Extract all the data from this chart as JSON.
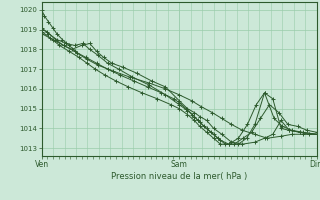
{
  "background_color": "#cce8d8",
  "grid_color": "#99ccaa",
  "line_color": "#2d5a2d",
  "marker_color": "#2d5a2d",
  "title": "Pression niveau de la mer( hPa )",
  "xlabel_ticks": [
    "Ven",
    "Sam",
    "Dim"
  ],
  "xlabel_tick_pos": [
    0.0,
    0.5,
    1.0
  ],
  "ylim": [
    1012.6,
    1020.4
  ],
  "yticks": [
    1013,
    1014,
    1015,
    1016,
    1017,
    1018,
    1019,
    1020
  ],
  "series": [
    {
      "x": [
        0.0,
        0.01,
        0.025,
        0.04,
        0.055,
        0.075,
        0.1,
        0.13,
        0.165,
        0.205,
        0.26,
        0.32,
        0.39,
        0.45,
        0.5,
        0.545,
        0.58,
        0.62,
        0.655,
        0.69,
        0.73,
        0.775,
        0.82,
        0.87,
        0.91,
        0.95,
        1.0
      ],
      "y": [
        1020.0,
        1019.7,
        1019.4,
        1019.1,
        1018.8,
        1018.5,
        1018.2,
        1017.8,
        1017.5,
        1017.2,
        1016.9,
        1016.6,
        1016.3,
        1016.0,
        1015.7,
        1015.4,
        1015.1,
        1014.8,
        1014.5,
        1014.2,
        1013.9,
        1013.7,
        1013.5,
        1013.6,
        1013.7,
        1013.7,
        1013.7
      ]
    },
    {
      "x": [
        0.0,
        0.02,
        0.05,
        0.08,
        0.11,
        0.145,
        0.175,
        0.2,
        0.225,
        0.255,
        0.295,
        0.345,
        0.4,
        0.45,
        0.5,
        0.53,
        0.555,
        0.575,
        0.6,
        0.625,
        0.655,
        0.69,
        0.73,
        0.775,
        0.81,
        0.84,
        0.87,
        0.9,
        0.94,
        0.97,
        1.0
      ],
      "y": [
        1019.0,
        1018.9,
        1018.5,
        1018.2,
        1018.0,
        1018.2,
        1018.3,
        1017.9,
        1017.6,
        1017.3,
        1017.1,
        1016.8,
        1016.4,
        1016.1,
        1015.4,
        1015.0,
        1014.8,
        1014.6,
        1014.4,
        1014.0,
        1013.7,
        1013.3,
        1013.2,
        1013.3,
        1013.5,
        1013.7,
        1014.4,
        1013.9,
        1013.8,
        1013.7,
        1013.7
      ]
    },
    {
      "x": [
        0.0,
        0.025,
        0.055,
        0.09,
        0.12,
        0.15,
        0.175,
        0.205,
        0.24,
        0.28,
        0.33,
        0.39,
        0.45,
        0.5,
        0.53,
        0.555,
        0.575,
        0.6,
        0.625,
        0.65,
        0.68,
        0.715,
        0.745,
        0.775,
        0.81,
        0.84,
        0.87,
        0.9,
        0.94,
        1.0
      ],
      "y": [
        1019.1,
        1018.8,
        1018.5,
        1018.3,
        1018.2,
        1018.3,
        1018.0,
        1017.7,
        1017.3,
        1017.0,
        1016.6,
        1016.2,
        1015.7,
        1015.2,
        1014.9,
        1014.6,
        1014.3,
        1014.0,
        1013.7,
        1013.4,
        1013.2,
        1013.2,
        1013.5,
        1014.2,
        1015.8,
        1015.5,
        1014.0,
        1013.9,
        1013.8,
        1013.7
      ]
    },
    {
      "x": [
        0.0,
        0.03,
        0.065,
        0.1,
        0.135,
        0.165,
        0.195,
        0.23,
        0.27,
        0.315,
        0.365,
        0.42,
        0.47,
        0.5,
        0.53,
        0.555,
        0.575,
        0.6,
        0.625,
        0.65,
        0.68,
        0.715,
        0.748,
        0.78,
        0.81,
        0.845,
        0.875,
        0.91,
        0.95,
        1.0
      ],
      "y": [
        1018.9,
        1018.6,
        1018.2,
        1017.9,
        1017.6,
        1017.3,
        1017.0,
        1016.7,
        1016.4,
        1016.1,
        1015.8,
        1015.5,
        1015.2,
        1015.0,
        1014.7,
        1014.4,
        1014.1,
        1013.8,
        1013.5,
        1013.2,
        1013.2,
        1013.5,
        1014.2,
        1015.2,
        1015.8,
        1014.5,
        1014.1,
        1013.9,
        1013.8,
        1013.7
      ]
    },
    {
      "x": [
        0.0,
        0.04,
        0.08,
        0.12,
        0.16,
        0.2,
        0.24,
        0.285,
        0.335,
        0.385,
        0.435,
        0.48,
        0.5,
        0.525,
        0.548,
        0.568,
        0.59,
        0.615,
        0.64,
        0.668,
        0.7,
        0.732,
        0.763,
        0.795,
        0.828,
        0.862,
        0.895,
        0.93,
        0.965,
        1.0
      ],
      "y": [
        1018.8,
        1018.5,
        1018.2,
        1017.9,
        1017.6,
        1017.3,
        1017.0,
        1016.7,
        1016.4,
        1016.1,
        1015.8,
        1015.5,
        1015.3,
        1015.0,
        1014.7,
        1014.4,
        1014.1,
        1013.8,
        1013.5,
        1013.2,
        1013.2,
        1013.5,
        1013.8,
        1014.5,
        1015.2,
        1014.8,
        1014.2,
        1014.1,
        1013.9,
        1013.8
      ]
    }
  ]
}
